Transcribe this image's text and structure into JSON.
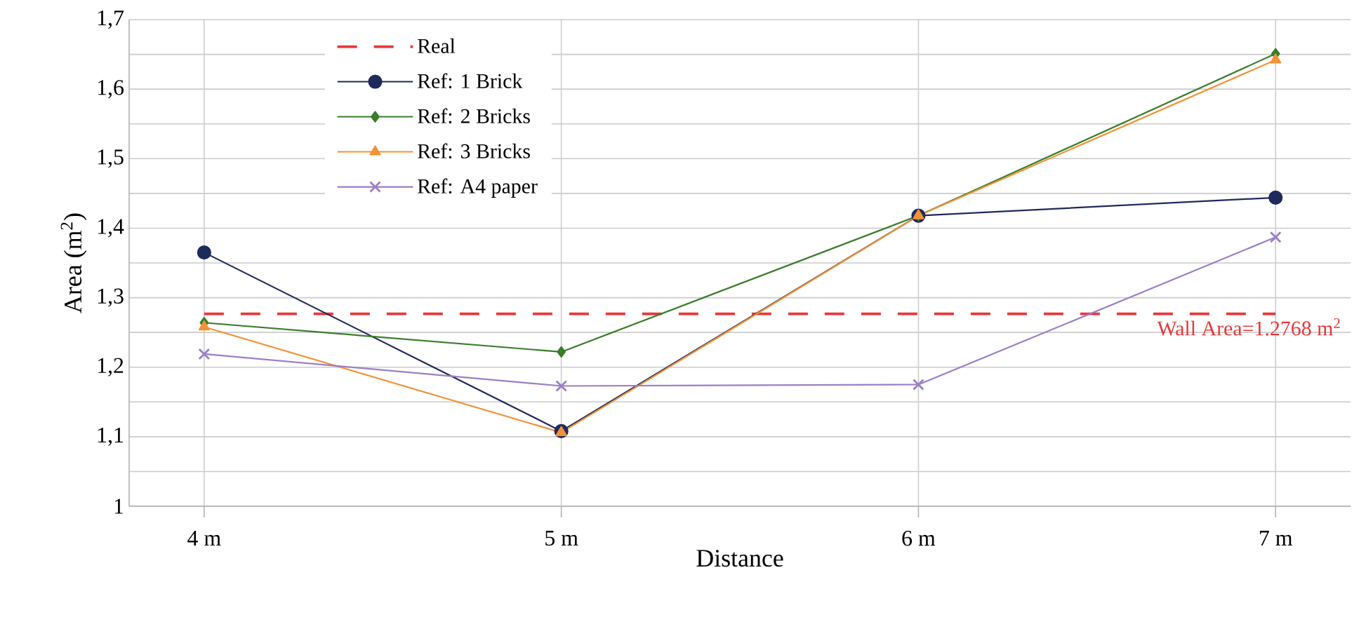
{
  "chart_data": {
    "type": "line",
    "xlabel": "Distance",
    "ylabel": "Area (m$^{2}$)",
    "categories": [
      "4 m",
      "5 m",
      "6 m",
      "7 m"
    ],
    "series": [
      {
        "name": "Real",
        "color": "#e8373a",
        "values": [
          1.2768,
          1.2768,
          1.2768,
          1.2768
        ],
        "line_style": "dashed",
        "marker": "none"
      },
      {
        "name": "Ref: 1 Brick",
        "color": "#1f2a5c",
        "values": [
          1.365,
          1.108,
          1.418,
          1.444
        ],
        "marker": "circle"
      },
      {
        "name": "Ref: 2 Bricks",
        "color": "#3a7d2c",
        "values": [
          1.264,
          1.222,
          1.418,
          1.651
        ],
        "marker": "diamond"
      },
      {
        "name": "Ref: 3 Bricks",
        "color": "#f39237",
        "values": [
          1.258,
          1.106,
          1.418,
          1.642
        ],
        "marker": "triangle"
      },
      {
        "name": "Ref: A4 paper",
        "color": "#9b7fc7",
        "values": [
          1.219,
          1.173,
          1.175,
          1.387
        ],
        "marker": "cross"
      }
    ],
    "ylim": [
      1,
      1.7
    ],
    "yticks": [
      {
        "value": 1,
        "label": "1"
      },
      {
        "value": 1.05,
        "label": null
      },
      {
        "value": 1.1,
        "label": "1,1"
      },
      {
        "value": 1.15,
        "label": null
      },
      {
        "value": 1.2,
        "label": "1,2"
      },
      {
        "value": 1.25,
        "label": null
      },
      {
        "value": 1.3,
        "label": "1,3"
      },
      {
        "value": 1.35,
        "label": null
      },
      {
        "value": 1.4,
        "label": "1,4"
      },
      {
        "value": 1.45,
        "label": null
      },
      {
        "value": 1.5,
        "label": "1,5"
      },
      {
        "value": 1.55,
        "label": null
      },
      {
        "value": 1.6,
        "label": "1,6"
      },
      {
        "value": 1.65,
        "label": null
      },
      {
        "value": 1.7,
        "label": "1,7"
      }
    ],
    "annotations": [
      {
        "text": "Wall Area=1.2768 m$^{2}$",
        "x": "7 m",
        "y": 1.2768
      }
    ],
    "grid": true,
    "legend": "top left"
  }
}
